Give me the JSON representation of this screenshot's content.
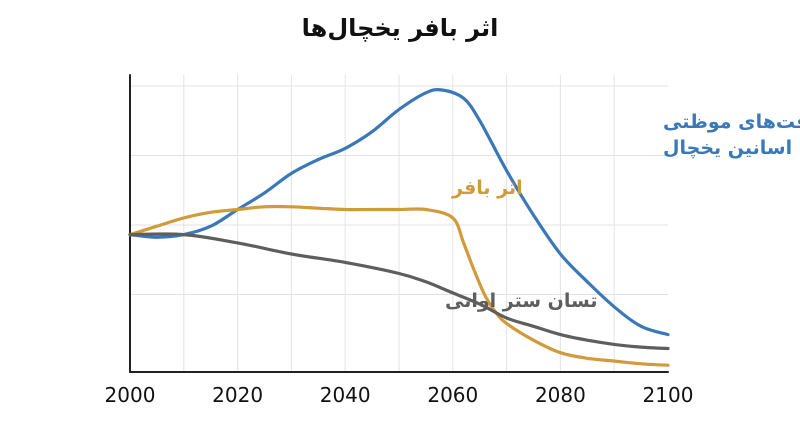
{
  "chart_data": {
    "type": "line",
    "title": "اثر بافر یخچال‌ها",
    "xlabel": "",
    "ylabel": "",
    "xlim": [
      2000,
      2100
    ],
    "ylim": [
      0,
      100
    ],
    "x_ticks": [
      2000,
      2020,
      2040,
      2060,
      2080,
      2100
    ],
    "x_tick_labels": [
      "2000",
      "2020",
      "2040",
      "2060",
      "2080",
      "2100"
    ],
    "grid": true,
    "legend": "none",
    "series": [
      {
        "name": "موقت‌های موظتی اسانین یخچال",
        "label_lines": [
          "موقت‌های موظتی",
          "اسانین یخچال"
        ],
        "color": "#3a78b8",
        "x": [
          2000,
          2005,
          2010,
          2015,
          2020,
          2025,
          2030,
          2035,
          2040,
          2045,
          2050,
          2055,
          2058,
          2062,
          2065,
          2070,
          2075,
          2080,
          2085,
          2090,
          2095,
          2100
        ],
        "values": [
          48,
          47,
          48,
          51,
          57,
          63,
          70,
          75,
          79,
          85,
          93,
          99,
          100,
          97,
          89,
          71,
          55,
          41,
          31,
          22,
          15,
          12
        ]
      },
      {
        "name": "اثر بافر",
        "label_lines": [
          "اثر بافر"
        ],
        "color": "#d19a3a",
        "x": [
          2000,
          2005,
          2010,
          2015,
          2020,
          2025,
          2030,
          2035,
          2040,
          2045,
          2050,
          2055,
          2060,
          2062,
          2064,
          2066,
          2068,
          2070,
          2075,
          2080,
          2085,
          2090,
          2095,
          2100
        ],
        "values": [
          48,
          51,
          54,
          56,
          57,
          58,
          58,
          57.5,
          57,
          57,
          57,
          57,
          54,
          45,
          35,
          26,
          20,
          16,
          10,
          5.5,
          3.5,
          2.5,
          1.5,
          1
        ]
      },
      {
        "name": "تسان ستر اوانی",
        "label_lines": [
          "تسان ستر اوانی"
        ],
        "color": "#5e5e5e",
        "x": [
          2000,
          2010,
          2020,
          2030,
          2040,
          2050,
          2055,
          2060,
          2065,
          2070,
          2075,
          2080,
          2085,
          2090,
          2095,
          2100
        ],
        "values": [
          48,
          48,
          45,
          41,
          38,
          34,
          31,
          27,
          23,
          18,
          15,
          12,
          10,
          8.5,
          7.5,
          7
        ]
      }
    ]
  }
}
